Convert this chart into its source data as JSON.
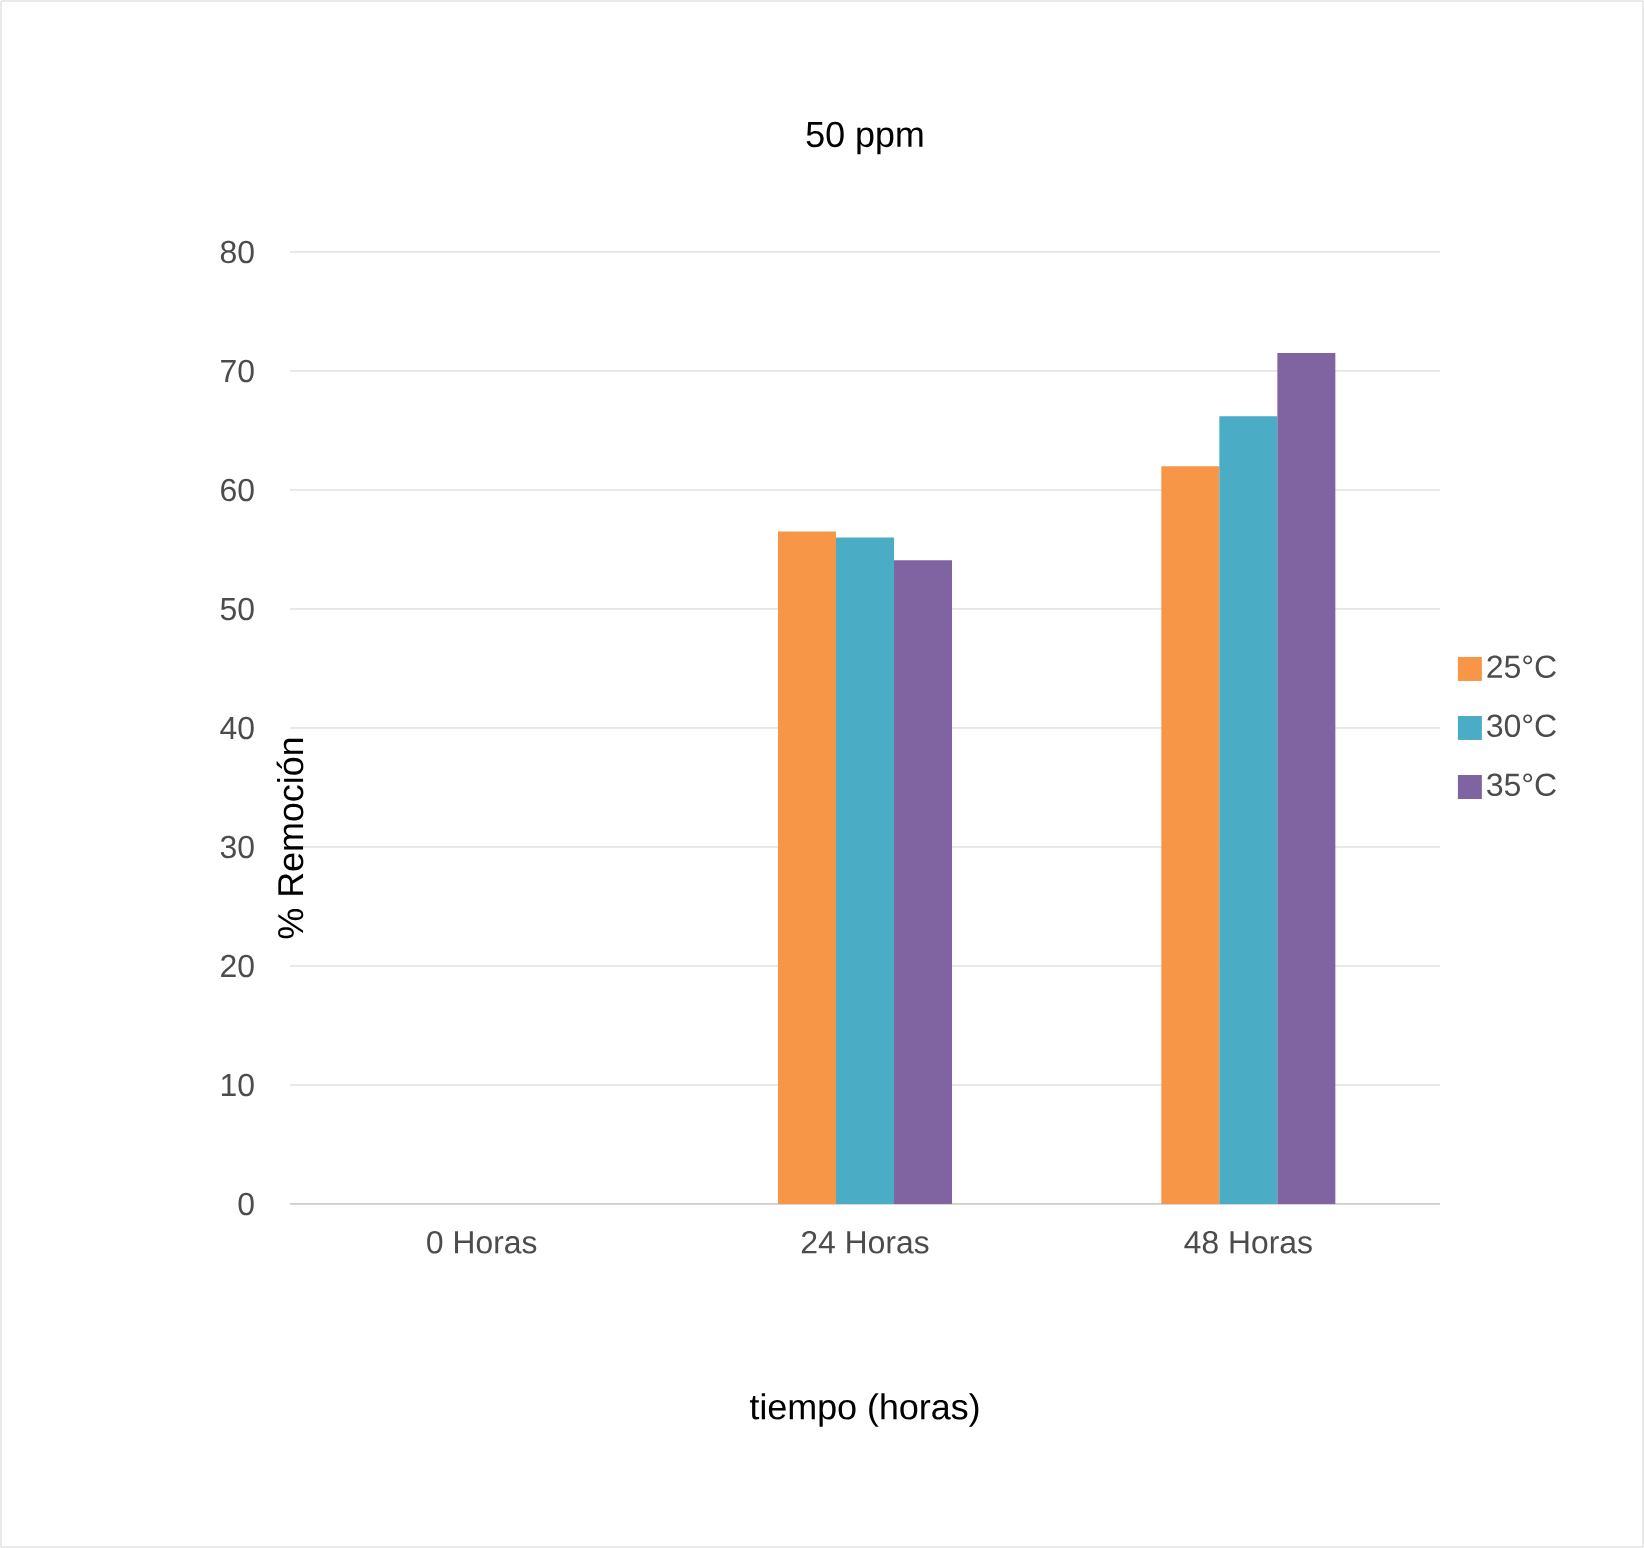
{
  "chart_data": {
    "type": "bar",
    "title": "50 ppm",
    "xlabel": "tiempo (horas)",
    "ylabel": "% Remoción",
    "categories": [
      "0 Horas",
      "24 Horas",
      "48 Horas"
    ],
    "series": [
      {
        "name": "25°C",
        "color": "#f79646",
        "values": [
          0,
          56.5,
          62
        ]
      },
      {
        "name": "30°C",
        "color": "#4bacc6",
        "values": [
          0,
          56,
          66.2
        ]
      },
      {
        "name": "35°C",
        "color": "#8064a2",
        "values": [
          0,
          54.1,
          71.5
        ]
      }
    ],
    "ylim": [
      0,
      80
    ],
    "yticks": [
      0,
      10,
      20,
      30,
      40,
      50,
      60,
      70,
      80
    ],
    "grid": "y",
    "legend": "right"
  }
}
